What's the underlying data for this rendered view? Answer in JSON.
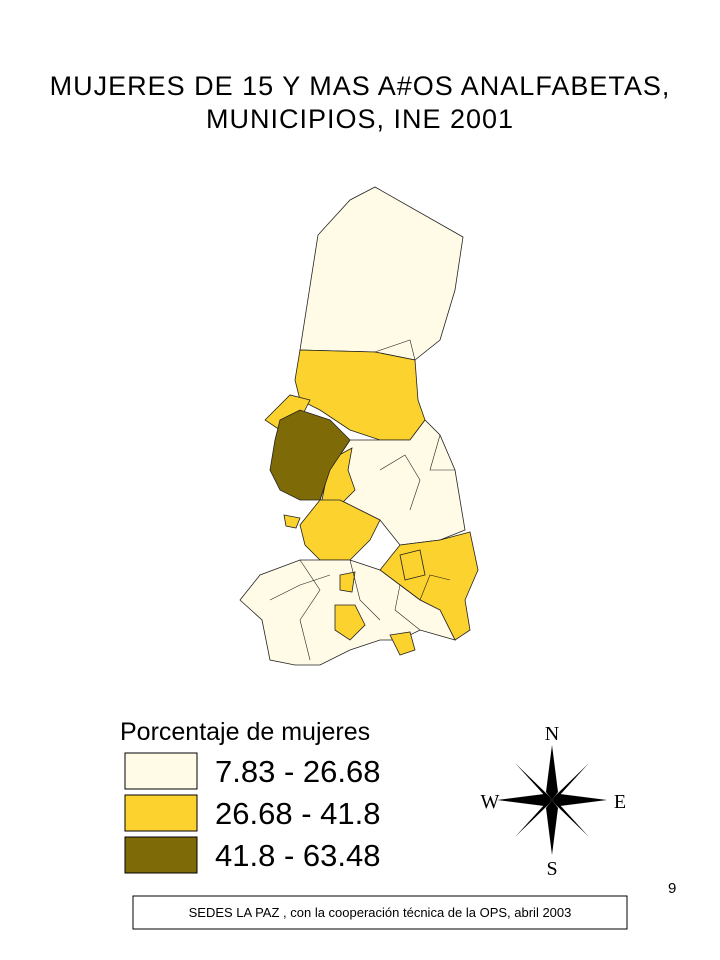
{
  "title": {
    "lines": [
      "MUJERES DE 15 Y MAS A#OS ANALFABETAS,",
      "MUNICIPIOS, INE 2001"
    ]
  },
  "legend": {
    "title": "Porcentaje de mujeres",
    "items": [
      {
        "label": "7.83 - 26.68",
        "color": "#fffbe6"
      },
      {
        "label": "26.68 - 41.8",
        "color": "#fcd22e"
      },
      {
        "label": "41.8 - 63.48",
        "color": "#7f6a08"
      }
    ]
  },
  "compass": {
    "north": "N",
    "south": "S",
    "east": "E",
    "west": "W"
  },
  "source": "SEDES LA PAZ , con la cooperación técnica de la OPS, abril  2003",
  "page_number": "9"
}
